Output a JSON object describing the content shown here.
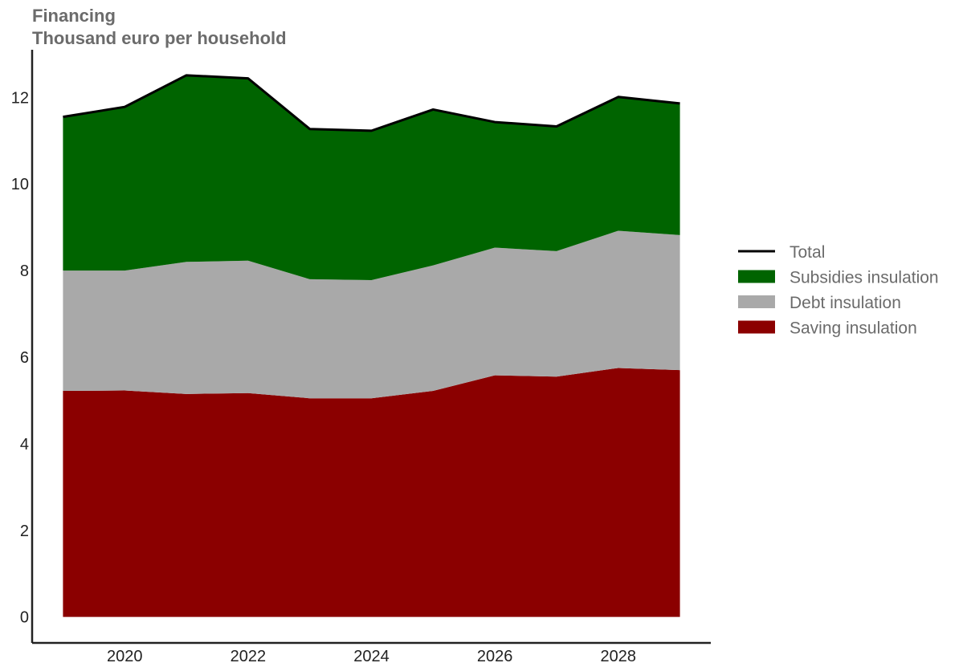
{
  "chart_data": {
    "type": "area",
    "title": "Financing",
    "subtitle": "Thousand euro per household",
    "xlabel": "",
    "ylabel": "",
    "x": [
      2019,
      2020,
      2021,
      2022,
      2023,
      2024,
      2025,
      2026,
      2027,
      2028,
      2029
    ],
    "xlim": [
      2018.5,
      2029.5
    ],
    "ylim": [
      -0.6,
      13.1
    ],
    "x_ticks": [
      2020,
      2022,
      2024,
      2026,
      2028
    ],
    "y_ticks": [
      0,
      2,
      4,
      6,
      8,
      10,
      12
    ],
    "grid": false,
    "stacked": true,
    "legend_position": "right",
    "series": [
      {
        "name": "Saving insulation",
        "color": "#8b0000",
        "kind": "area",
        "values": [
          5.22,
          5.23,
          5.15,
          5.17,
          5.05,
          5.05,
          5.22,
          5.58,
          5.55,
          5.75,
          5.7
        ]
      },
      {
        "name": "Debt insulation",
        "color": "#a9a9a9",
        "kind": "area",
        "values": [
          2.78,
          2.77,
          3.05,
          3.06,
          2.75,
          2.73,
          2.9,
          2.95,
          2.9,
          3.17,
          3.12
        ]
      },
      {
        "name": "Subsidies insulation",
        "color": "#006400",
        "kind": "area",
        "values": [
          3.55,
          3.78,
          4.31,
          4.21,
          3.47,
          3.45,
          3.6,
          2.9,
          2.88,
          3.09,
          3.04
        ]
      },
      {
        "name": "Total",
        "color": "#000000",
        "kind": "line",
        "values": [
          11.55,
          11.78,
          12.51,
          12.44,
          11.27,
          11.23,
          11.72,
          11.43,
          11.33,
          12.01,
          11.86
        ]
      }
    ],
    "legend": [
      {
        "name": "Total",
        "kind": "line",
        "color": "#000000"
      },
      {
        "name": "Subsidies insulation",
        "kind": "area",
        "color": "#006400"
      },
      {
        "name": "Debt insulation",
        "kind": "area",
        "color": "#a9a9a9"
      },
      {
        "name": "Saving insulation",
        "kind": "area",
        "color": "#8b0000"
      }
    ]
  }
}
